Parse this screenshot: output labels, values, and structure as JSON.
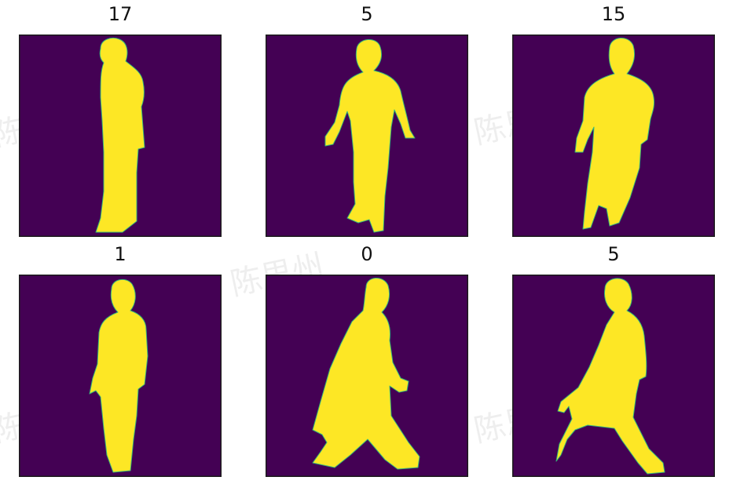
{
  "panels": [
    {
      "title": "17"
    },
    {
      "title": "5"
    },
    {
      "title": "15"
    },
    {
      "title": "1"
    },
    {
      "title": "0"
    },
    {
      "title": "5"
    }
  ],
  "watermark": "陈思州",
  "colors": {
    "background": "#440154",
    "silhouette": "#fde725",
    "edge": "#35b779"
  }
}
